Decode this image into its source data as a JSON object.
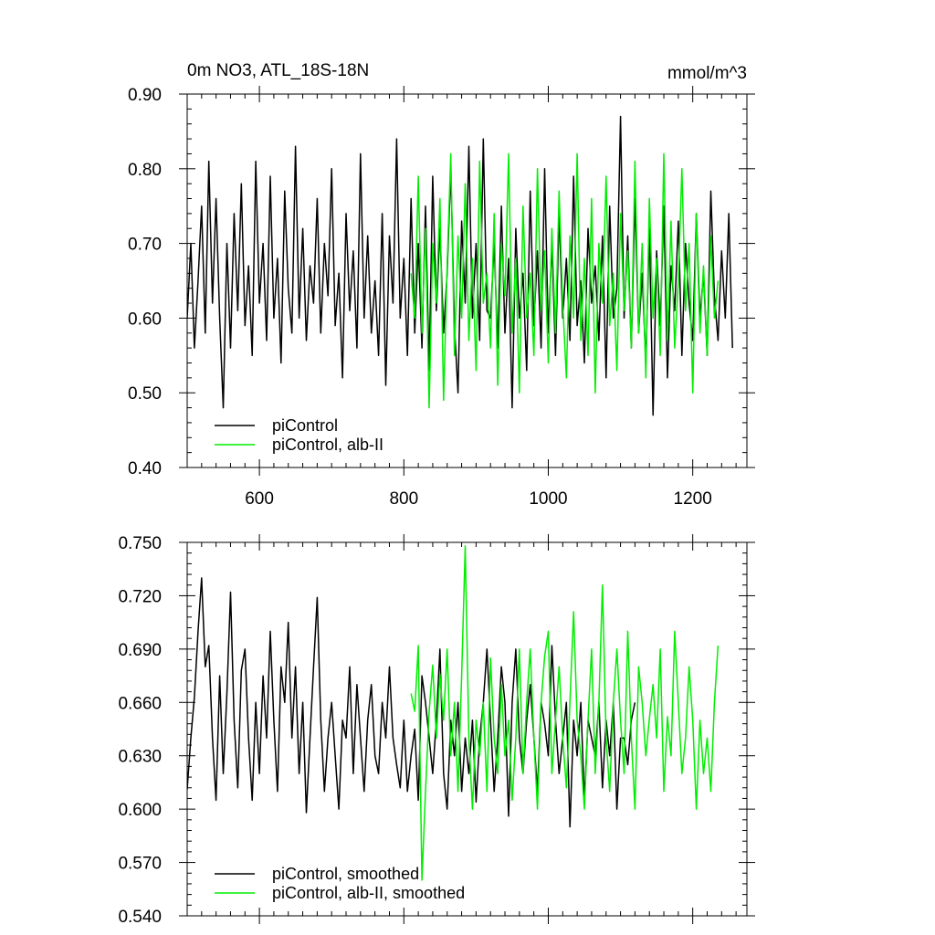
{
  "figure": {
    "title_left": "0m NO3, ATL_18S-18N",
    "title_right": "mmol/m^3"
  },
  "chart_data": [
    {
      "type": "line",
      "xlim": [
        500,
        1275
      ],
      "ylim": [
        0.4,
        0.9
      ],
      "x_ticks": [
        600,
        800,
        1000,
        1200
      ],
      "x_tick_labels": [
        "600",
        "800",
        "1000",
        "1200"
      ],
      "y_ticks": [
        0.4,
        0.5,
        0.6,
        0.7,
        0.8,
        0.9
      ],
      "y_tick_labels": [
        "0.40",
        "0.50",
        "0.60",
        "0.70",
        "0.80",
        "0.90"
      ],
      "series": [
        {
          "name": "piControl",
          "color": "#000000",
          "x_start": 500,
          "x_step": 5,
          "values": [
            0.6,
            0.7,
            0.56,
            0.65,
            0.75,
            0.58,
            0.81,
            0.62,
            0.76,
            0.6,
            0.48,
            0.7,
            0.56,
            0.74,
            0.61,
            0.78,
            0.59,
            0.67,
            0.55,
            0.81,
            0.62,
            0.7,
            0.57,
            0.79,
            0.6,
            0.68,
            0.54,
            0.77,
            0.64,
            0.58,
            0.83,
            0.6,
            0.72,
            0.57,
            0.67,
            0.62,
            0.76,
            0.58,
            0.7,
            0.63,
            0.8,
            0.59,
            0.66,
            0.52,
            0.74,
            0.61,
            0.69,
            0.56,
            0.82,
            0.6,
            0.71,
            0.58,
            0.65,
            0.55,
            0.74,
            0.51,
            0.71,
            0.62,
            0.84,
            0.6,
            0.68,
            0.55,
            0.76,
            0.58,
            0.7,
            0.56,
            0.75,
            0.53,
            0.79,
            0.61,
            0.72,
            0.58,
            0.66,
            0.8,
            0.59,
            0.5,
            0.73,
            0.62,
            0.83,
            0.6,
            0.7,
            0.57,
            0.84,
            0.61,
            0.6,
            0.7,
            0.56,
            0.75,
            0.58,
            0.68,
            0.48,
            0.72,
            0.6,
            0.66,
            0.53,
            0.77,
            0.59,
            0.69,
            0.56,
            0.8,
            0.58,
            0.7,
            0.55,
            0.74,
            0.6,
            0.68,
            0.57,
            0.79,
            0.59,
            0.65,
            0.54,
            0.72,
            0.62,
            0.67,
            0.57,
            0.71,
            0.52,
            0.75,
            0.6,
            0.64,
            0.87,
            0.6,
            0.71,
            0.56,
            0.76,
            0.58,
            0.66,
            0.54,
            0.72,
            0.47,
            0.69,
            0.59,
            0.75,
            0.52,
            0.67,
            0.61,
            0.73,
            0.55,
            0.7,
            0.62,
            0.57,
            0.74,
            0.6,
            0.66,
            0.55,
            0.77,
            0.63,
            0.57,
            0.69,
            0.6,
            0.74,
            0.56
          ]
        },
        {
          "name": "piControl, alb-II",
          "color": "#00ee00",
          "x_start": 810,
          "x_step": 5,
          "values": [
            0.66,
            0.6,
            0.79,
            0.58,
            0.72,
            0.48,
            0.7,
            0.62,
            0.76,
            0.49,
            0.67,
            0.82,
            0.55,
            0.71,
            0.6,
            0.78,
            0.57,
            0.68,
            0.53,
            0.81,
            0.62,
            0.66,
            0.56,
            0.74,
            0.51,
            0.7,
            0.63,
            0.82,
            0.58,
            0.68,
            0.5,
            0.75,
            0.6,
            0.66,
            0.55,
            0.8,
            0.61,
            0.69,
            0.54,
            0.72,
            0.58,
            0.77,
            0.62,
            0.52,
            0.71,
            0.6,
            0.82,
            0.57,
            0.68,
            0.55,
            0.76,
            0.5,
            0.7,
            0.62,
            0.79,
            0.59,
            0.66,
            0.53,
            0.74,
            0.61,
            0.69,
            0.56,
            0.81,
            0.58,
            0.7,
            0.52,
            0.76,
            0.6,
            0.68,
            0.55,
            0.82,
            0.57,
            0.73,
            0.56,
            0.65,
            0.8,
            0.61,
            0.7,
            0.5,
            0.74,
            0.58,
            0.67,
            0.55,
            0.71,
            0.6,
            0.65
          ]
        }
      ],
      "legend": [
        "piControl",
        "piControl, alb-II"
      ],
      "legend_position": "bottom-left"
    },
    {
      "type": "line",
      "xlim": [
        500,
        1275
      ],
      "ylim": [
        0.54,
        0.75
      ],
      "x_ticks": [
        600,
        800,
        1000,
        1200
      ],
      "y_ticks": [
        0.54,
        0.57,
        0.6,
        0.63,
        0.66,
        0.69,
        0.72,
        0.75
      ],
      "y_tick_labels": [
        "0.540",
        "0.570",
        "0.600",
        "0.630",
        "0.660",
        "0.690",
        "0.720",
        "0.750"
      ],
      "series": [
        {
          "name": "piControl, smoothed",
          "color": "#000000",
          "x_start": 500,
          "x_step": 5,
          "values": [
            0.611,
            0.64,
            0.663,
            0.7,
            0.73,
            0.68,
            0.692,
            0.64,
            0.605,
            0.675,
            0.62,
            0.665,
            0.722,
            0.65,
            0.612,
            0.678,
            0.69,
            0.64,
            0.605,
            0.66,
            0.62,
            0.675,
            0.64,
            0.7,
            0.65,
            0.61,
            0.68,
            0.66,
            0.705,
            0.64,
            0.68,
            0.62,
            0.66,
            0.598,
            0.64,
            0.68,
            0.719,
            0.65,
            0.61,
            0.64,
            0.66,
            0.63,
            0.6,
            0.65,
            0.64,
            0.68,
            0.62,
            0.67,
            0.64,
            0.61,
            0.65,
            0.67,
            0.63,
            0.62,
            0.66,
            0.64,
            0.68,
            0.64,
            0.625,
            0.612,
            0.65,
            0.61,
            0.63,
            0.645,
            0.605,
            0.675,
            0.66,
            0.64,
            0.62,
            0.65,
            0.69,
            0.62,
            0.6,
            0.65,
            0.63,
            0.66,
            0.61,
            0.64,
            0.62,
            0.65,
            0.604,
            0.64,
            0.66,
            0.69,
            0.65,
            0.61,
            0.64,
            0.68,
            0.66,
            0.596,
            0.66,
            0.69,
            0.64,
            0.62,
            0.65,
            0.67,
            0.64,
            0.61,
            0.66,
            0.648,
            0.63,
            0.692,
            0.65,
            0.62,
            0.64,
            0.66,
            0.59,
            0.65,
            0.63,
            0.66,
            0.605,
            0.65,
            0.64,
            0.63,
            0.66,
            0.612,
            0.65,
            0.63,
            0.66,
            0.6,
            0.64,
            0.64,
            0.625,
            0.65,
            0.66
          ]
        },
        {
          "name": "piControl, alb-II, smoothed",
          "color": "#00ee00",
          "x_start": 810,
          "x_step": 5,
          "values": [
            0.665,
            0.655,
            0.692,
            0.56,
            0.61,
            0.655,
            0.681,
            0.64,
            0.676,
            0.65,
            0.69,
            0.63,
            0.66,
            0.61,
            0.675,
            0.748,
            0.64,
            0.6,
            0.65,
            0.63,
            0.66,
            0.61,
            0.685,
            0.64,
            0.62,
            0.67,
            0.63,
            0.65,
            0.605,
            0.64,
            0.69,
            0.62,
            0.66,
            0.69,
            0.64,
            0.6,
            0.66,
            0.686,
            0.7,
            0.62,
            0.65,
            0.68,
            0.64,
            0.612,
            0.66,
            0.711,
            0.65,
            0.63,
            0.6,
            0.65,
            0.69,
            0.62,
            0.66,
            0.726,
            0.64,
            0.61,
            0.66,
            0.69,
            0.65,
            0.62,
            0.7,
            0.64,
            0.6,
            0.68,
            0.66,
            0.63,
            0.651,
            0.67,
            0.64,
            0.69,
            0.61,
            0.652,
            0.63,
            0.7,
            0.66,
            0.62,
            0.64,
            0.68,
            0.65,
            0.6,
            0.65,
            0.62,
            0.64,
            0.61,
            0.66,
            0.692
          ]
        }
      ],
      "legend": [
        "piControl, smoothed",
        "piControl, alb-II, smoothed"
      ],
      "legend_position": "bottom-left"
    }
  ]
}
